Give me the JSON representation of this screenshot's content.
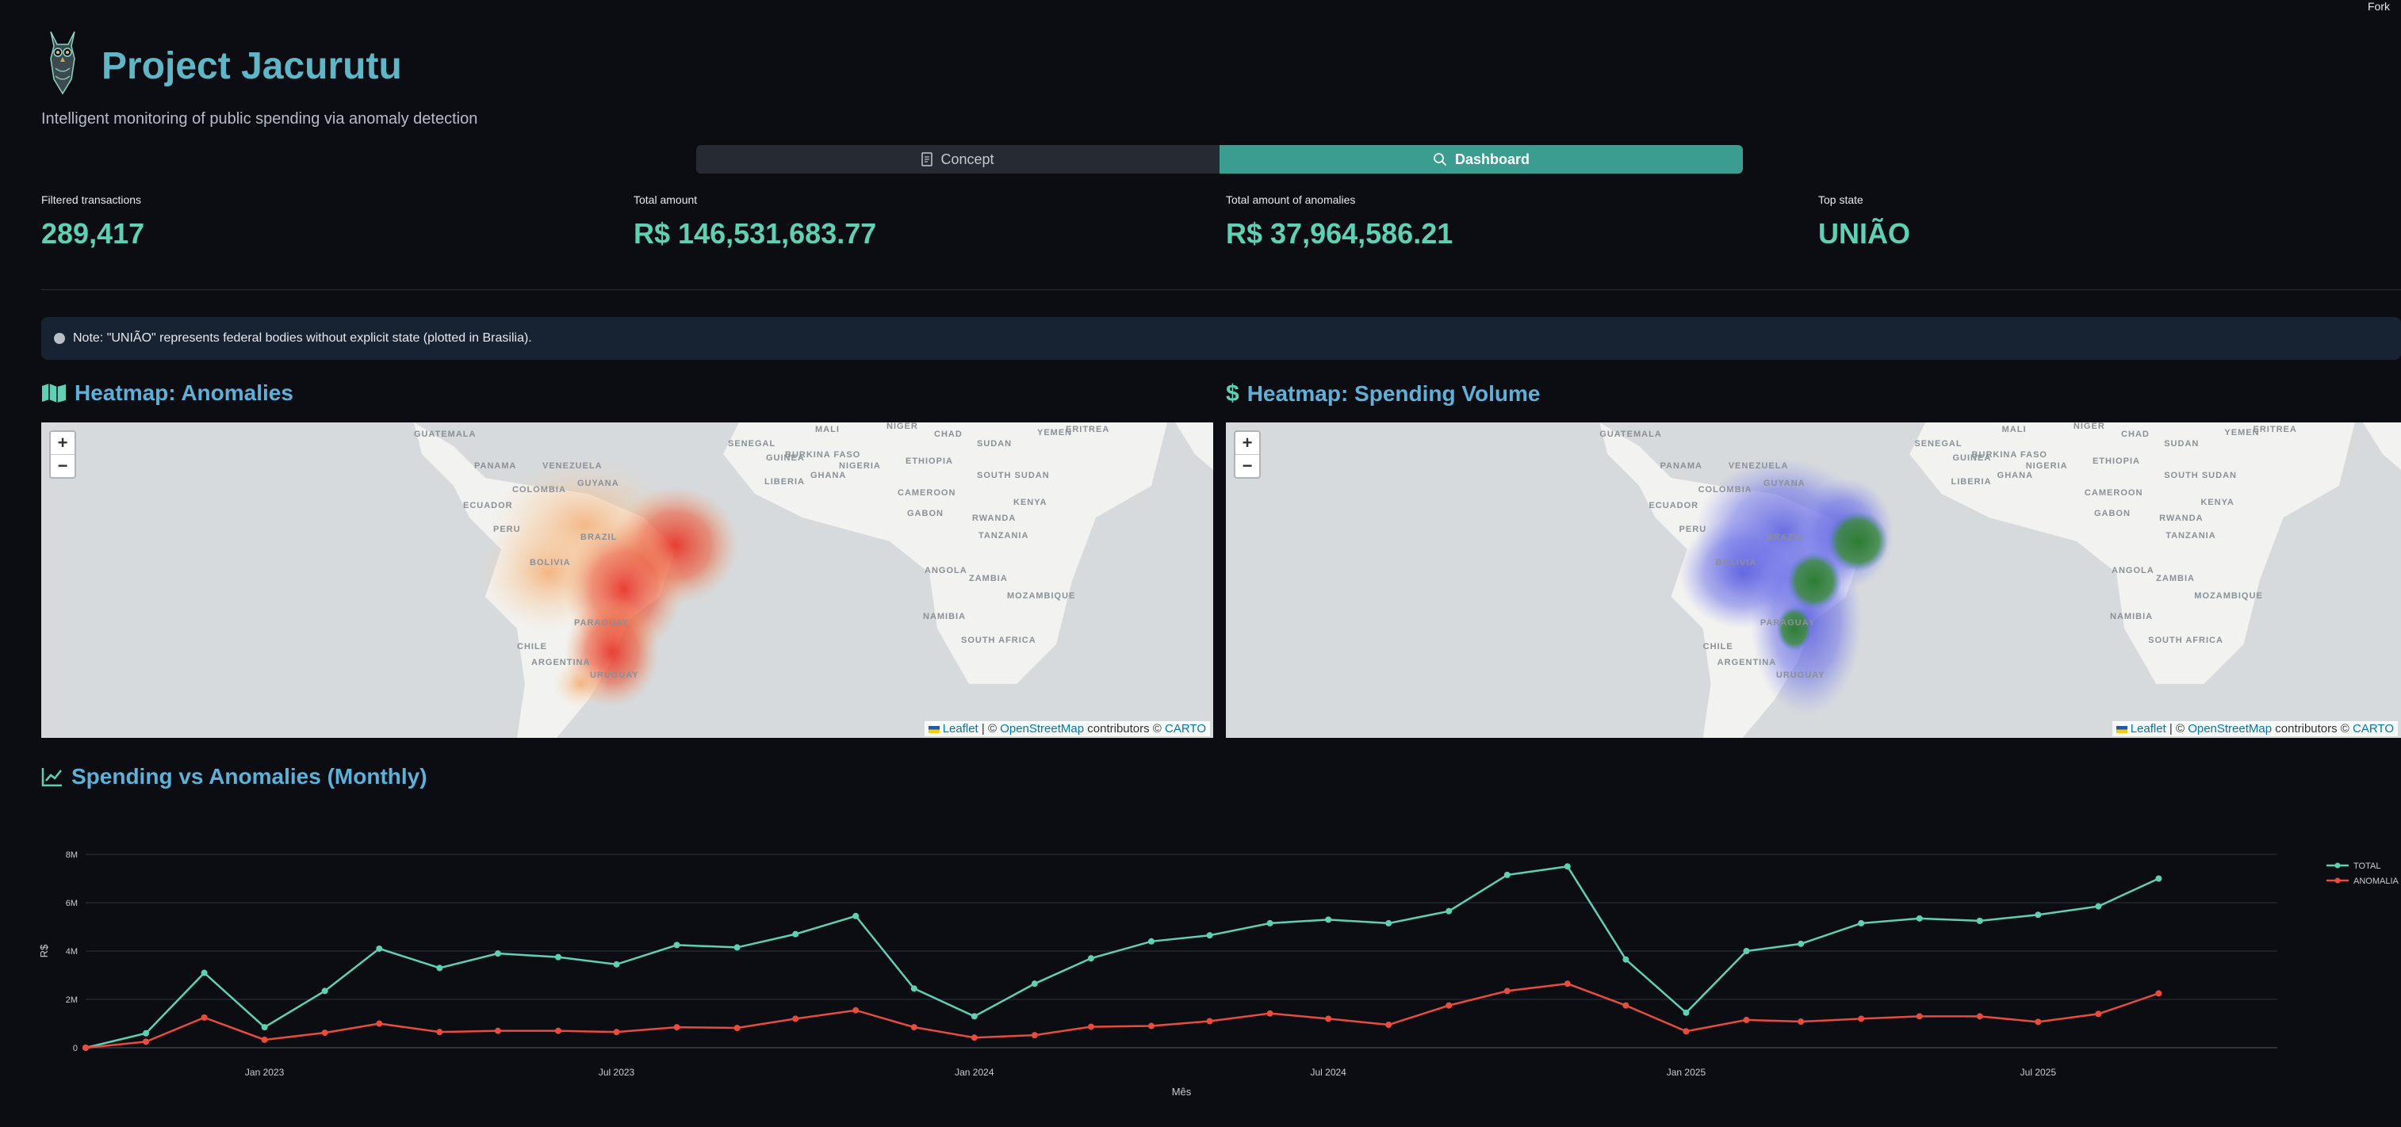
{
  "header": {
    "fork_label": "Fork",
    "logo_icon": "owl-logo-icon",
    "title": "Project Jacurutu",
    "subtitle": "Intelligent monitoring of public spending via anomaly detection"
  },
  "tabs": [
    {
      "label": "Concept",
      "icon": "document-icon",
      "active": false
    },
    {
      "label": "Dashboard",
      "icon": "search-icon",
      "active": true
    }
  ],
  "metrics": [
    {
      "label": "Filtered transactions",
      "value": "289,417"
    },
    {
      "label": "Total amount",
      "value": "R$ 146,531,683.77"
    },
    {
      "label": "Total amount of anomalies",
      "value": "R$ 37,964,586.21"
    },
    {
      "label": "Top state",
      "value": "UNIÃO"
    }
  ],
  "note": "Note: \"UNIÃO\" represents federal bodies without explicit state (plotted in Brasilia).",
  "maps": {
    "anomalies": {
      "title": "Heatmap: Anomalies",
      "icon": "map-icon"
    },
    "volume": {
      "title": "Heatmap: Spending Volume",
      "icon": "dollar-icon"
    },
    "zoom_in": "+",
    "zoom_out": "−",
    "attribution": {
      "leaflet": "Leaflet",
      "sep": " | © ",
      "osm": "OpenStreetMap",
      "contributors": " contributors © ",
      "carto": "CARTO"
    },
    "country_labels": [
      "GUATEMALA",
      "PANAMA",
      "VENEZUELA",
      "COLOMBIA",
      "GUYANA",
      "ECUADOR",
      "PERU",
      "BRAZIL",
      "BOLIVIA",
      "PARAGUAY",
      "CHILE",
      "ARGENTINA",
      "URUGUAY",
      "SENEGAL",
      "MALI",
      "NIGER",
      "CHAD",
      "SUDAN",
      "ERITREA",
      "YEMEN",
      "GUINEA",
      "BURKINA FASO",
      "NIGERIA",
      "ETHIOPIA",
      "LIBERIA",
      "GHANA",
      "SOUTH SUDAN",
      "CAMEROON",
      "KENYA",
      "GABON",
      "RWANDA",
      "TANZANIA",
      "ANGOLA",
      "ZAMBIA",
      "MOZAMBIQUE",
      "NAMIBIA",
      "SOUTH AFRICA"
    ],
    "colors": {
      "anomaly_hot": "#e8362a",
      "anomaly_warm": "#f4a86a",
      "volume_core": "#2e7d32",
      "volume_halo": "#6e72e8",
      "land": "#f2f2f0",
      "sea": "#d6dadd"
    }
  },
  "chart_section": {
    "title": "Spending vs Anomalies (Monthly)",
    "icon": "line-chart-icon"
  },
  "chart_data": {
    "type": "line",
    "xlabel": "Mês",
    "ylabel": "R$",
    "x": [
      "2022-10",
      "2022-11",
      "2022-12",
      "2023-01",
      "2023-02",
      "2023-03",
      "2023-04",
      "2023-05",
      "2023-06",
      "2023-07",
      "2023-08",
      "2023-09",
      "2023-10",
      "2023-11",
      "2023-12",
      "2024-01",
      "2024-02",
      "2024-03",
      "2024-04",
      "2024-05",
      "2024-06",
      "2024-07",
      "2024-08",
      "2024-09",
      "2024-10",
      "2024-11",
      "2024-12",
      "2025-01",
      "2025-02",
      "2025-03",
      "2025-04",
      "2025-05",
      "2025-06",
      "2025-07",
      "2025-08",
      "2025-09",
      "2025-10"
    ],
    "x_ticks": [
      "Jan 2023",
      "Jul 2023",
      "Jan 2024",
      "Jul 2024",
      "Jan 2025",
      "Jul 2025"
    ],
    "y_ticks": [
      "0",
      "2M",
      "4M",
      "6M",
      "8M"
    ],
    "ylim": [
      0,
      8000000
    ],
    "grid": true,
    "legend_position": "right",
    "series": [
      {
        "name": "TOTAL",
        "color": "#5fd0b4",
        "values": [
          0,
          600000,
          3100000,
          850000,
          2350000,
          4100000,
          3300000,
          3900000,
          3750000,
          3450000,
          4250000,
          4150000,
          4700000,
          5450000,
          2450000,
          1300000,
          2650000,
          3700000,
          4400000,
          4650000,
          5150000,
          5300000,
          5150000,
          5650000,
          7150000,
          7500000,
          3650000,
          1450000,
          4000000,
          4300000,
          5150000,
          5350000,
          5250000,
          5500000,
          5850000,
          7000000,
          null
        ]
      },
      {
        "name": "ANOMALIA",
        "color": "#e74c3c",
        "values": [
          0,
          250000,
          1250000,
          330000,
          620000,
          1000000,
          650000,
          700000,
          700000,
          650000,
          850000,
          820000,
          1200000,
          1550000,
          850000,
          420000,
          520000,
          870000,
          900000,
          1100000,
          1420000,
          1200000,
          950000,
          1750000,
          2350000,
          2650000,
          1750000,
          680000,
          1150000,
          1080000,
          1200000,
          1300000,
          1300000,
          1070000,
          1400000,
          2250000,
          null
        ]
      }
    ]
  }
}
